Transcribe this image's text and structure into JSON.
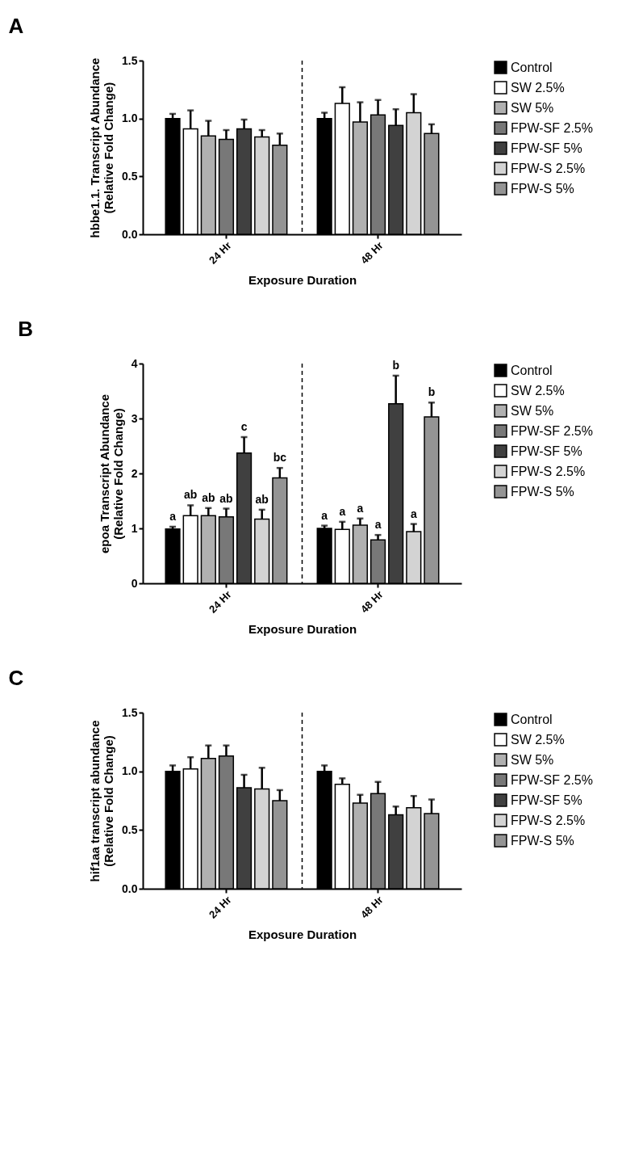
{
  "chart_data": [
    {
      "type": "bar",
      "title": "A",
      "xlabel": "Exposure Duration",
      "ylabel": "hbbe1.1. Transcript Abundance\n(Relative  Fold  Change)",
      "categories": [
        "24 Hr",
        "48 Hr"
      ],
      "ylim": [
        0,
        1.5
      ],
      "yticks": [
        {
          "value": 0,
          "label": "0.0"
        },
        {
          "value": 0.5,
          "label": "0.5"
        },
        {
          "value": 1,
          "label": "1.0"
        },
        {
          "value": 1.5,
          "label": "1.5"
        }
      ],
      "legend": "right",
      "series": [
        {
          "name": "Control",
          "color": "#000000",
          "values": [
            1.0,
            1.0
          ],
          "errors": [
            [
              1.0,
              1.04
            ],
            [
              1.0,
              1.05
            ]
          ]
        },
        {
          "name": "SW 2.5%",
          "color": "#ffffff",
          "values": [
            0.91,
            1.13
          ],
          "errors": [
            [
              0.91,
              1.07
            ],
            [
              1.13,
              1.27
            ]
          ]
        },
        {
          "name": "SW 5%",
          "color": "#b0b0b0",
          "values": [
            0.85,
            0.97
          ],
          "errors": [
            [
              0.85,
              0.98
            ],
            [
              0.97,
              1.14
            ]
          ]
        },
        {
          "name": "FPW-SF 2.5%",
          "color": "#787878",
          "values": [
            0.82,
            1.03
          ],
          "errors": [
            [
              0.82,
              0.9
            ],
            [
              1.03,
              1.16
            ]
          ]
        },
        {
          "name": "FPW-SF 5%",
          "color": "#404040",
          "values": [
            0.91,
            0.94
          ],
          "errors": [
            [
              0.91,
              0.99
            ],
            [
              0.94,
              1.08
            ]
          ]
        },
        {
          "name": "FPW-S 2.5%",
          "color": "#d3d3d3",
          "values": [
            0.84,
            1.05
          ],
          "errors": [
            [
              0.84,
              0.9
            ],
            [
              1.05,
              1.21
            ]
          ]
        },
        {
          "name": "FPW-S 5%",
          "color": "#949494",
          "values": [
            0.77,
            0.87
          ],
          "errors": [
            [
              0.77,
              0.87
            ],
            [
              0.87,
              0.95
            ]
          ]
        }
      ]
    },
    {
      "type": "bar",
      "title": "B",
      "xlabel": "Exposure Duration",
      "ylabel": "epoa Transcript Abundance\n(Relative  Fold  Change)",
      "categories": [
        "24 Hr",
        "48 Hr"
      ],
      "ylim": [
        0,
        4
      ],
      "yticks": [
        0,
        1,
        2,
        3,
        4
      ],
      "legend": "right",
      "series": [
        {
          "name": "Control",
          "color": "#000000",
          "values": [
            0.99,
            1.0
          ],
          "errors": [
            [
              0.99,
              1.03
            ],
            [
              1.0,
              1.05
            ]
          ],
          "value_labels": [
            "a",
            "a"
          ]
        },
        {
          "name": "SW 2.5%",
          "color": "#ffffff",
          "values": [
            1.23,
            0.98
          ],
          "errors": [
            [
              1.23,
              1.42
            ],
            [
              0.98,
              1.12
            ]
          ],
          "value_labels": [
            "ab",
            "a"
          ]
        },
        {
          "name": "SW 5%",
          "color": "#b0b0b0",
          "values": [
            1.23,
            1.06
          ],
          "errors": [
            [
              1.23,
              1.37
            ],
            [
              1.06,
              1.18
            ]
          ],
          "value_labels": [
            "ab",
            "a"
          ]
        },
        {
          "name": "FPW-SF 2.5%",
          "color": "#787878",
          "values": [
            1.21,
            0.79
          ],
          "errors": [
            [
              1.21,
              1.36
            ],
            [
              0.79,
              0.88
            ]
          ],
          "value_labels": [
            "ab",
            "a"
          ]
        },
        {
          "name": "FPW-SF 5%",
          "color": "#404040",
          "values": [
            2.37,
            3.27
          ],
          "errors": [
            [
              2.37,
              2.66
            ],
            [
              3.27,
              3.78
            ]
          ],
          "value_labels": [
            "c",
            "b"
          ]
        },
        {
          "name": "FPW-S 2.5%",
          "color": "#d3d3d3",
          "values": [
            1.17,
            0.94
          ],
          "errors": [
            [
              1.17,
              1.34
            ],
            [
              0.94,
              1.08
            ]
          ],
          "value_labels": [
            "ab",
            "a"
          ]
        },
        {
          "name": "FPW-S 5%",
          "color": "#949494",
          "values": [
            1.92,
            3.03
          ],
          "errors": [
            [
              1.92,
              2.1
            ],
            [
              3.03,
              3.29
            ]
          ],
          "value_labels": [
            "bc",
            "b"
          ]
        }
      ]
    },
    {
      "type": "bar",
      "title": "C",
      "xlabel": "Exposure Duration",
      "ylabel": "hif1aa transcript abundance\n(Relative  Fold  Change)",
      "categories": [
        "24 Hr",
        "48 Hr"
      ],
      "ylim": [
        0,
        1.5
      ],
      "yticks": [
        {
          "value": 0,
          "label": "0.0"
        },
        {
          "value": 0.5,
          "label": "0.5"
        },
        {
          "value": 1,
          "label": "1.0"
        },
        {
          "value": 1.5,
          "label": "1.5"
        }
      ],
      "legend": "right",
      "series": [
        {
          "name": "Control",
          "color": "#000000",
          "values": [
            1.0,
            1.0
          ],
          "errors": [
            [
              1.0,
              1.05
            ],
            [
              1.0,
              1.05
            ]
          ]
        },
        {
          "name": "SW 2.5%",
          "color": "#ffffff",
          "values": [
            1.02,
            0.89
          ],
          "errors": [
            [
              1.02,
              1.12
            ],
            [
              0.89,
              0.94
            ]
          ]
        },
        {
          "name": "SW 5%",
          "color": "#b0b0b0",
          "values": [
            1.11,
            0.73
          ],
          "errors": [
            [
              1.11,
              1.22
            ],
            [
              0.73,
              0.8
            ]
          ]
        },
        {
          "name": "FPW-SF 2.5%",
          "color": "#787878",
          "values": [
            1.13,
            0.81
          ],
          "errors": [
            [
              1.13,
              1.22
            ],
            [
              0.81,
              0.91
            ]
          ]
        },
        {
          "name": "FPW-SF 5%",
          "color": "#404040",
          "values": [
            0.86,
            0.63
          ],
          "errors": [
            [
              0.86,
              0.97
            ],
            [
              0.63,
              0.7
            ]
          ]
        },
        {
          "name": "FPW-S 2.5%",
          "color": "#d3d3d3",
          "values": [
            0.85,
            0.69
          ],
          "errors": [
            [
              0.85,
              1.03
            ],
            [
              0.69,
              0.79
            ]
          ]
        },
        {
          "name": "FPW-S 5%",
          "color": "#949494",
          "values": [
            0.75,
            0.64
          ],
          "errors": [
            [
              0.75,
              0.84
            ],
            [
              0.64,
              0.76
            ]
          ]
        }
      ]
    }
  ]
}
